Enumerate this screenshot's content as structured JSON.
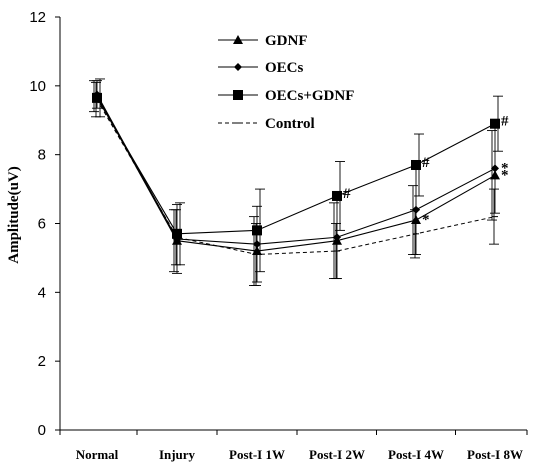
{
  "chart_data": {
    "type": "line",
    "categories": [
      "Normal",
      "Injury",
      "Post-I 1W",
      "Post-I 2W",
      "Post-I 4W",
      "Post-I 8W"
    ],
    "ylabel": "Amplitude(uV)",
    "ylim": [
      0,
      12
    ],
    "yticks": [
      "0",
      "2",
      "4",
      "6",
      "8",
      "10",
      "12"
    ],
    "series": [
      {
        "name": "GDNF",
        "marker": "triangle",
        "dash": "solid",
        "values": [
          9.7,
          5.5,
          5.2,
          5.5,
          6.1,
          7.4
        ],
        "err": [
          0.45,
          0.9,
          1.0,
          1.1,
          1.0,
          1.3
        ]
      },
      {
        "name": "OECs",
        "marker": "diamond",
        "dash": "solid",
        "values": [
          9.75,
          5.55,
          5.4,
          5.6,
          6.4,
          7.6
        ],
        "err": [
          0.4,
          1.0,
          1.1,
          1.2,
          1.3,
          1.3
        ]
      },
      {
        "name": "OECs+GDNF",
        "marker": "square",
        "dash": "solid",
        "values": [
          9.65,
          5.7,
          5.8,
          6.8,
          7.7,
          8.9
        ],
        "err": [
          0.55,
          0.9,
          1.2,
          1.0,
          0.9,
          0.8
        ]
      },
      {
        "name": "Control",
        "marker": "none",
        "dash": "dashed",
        "values": [
          9.6,
          5.6,
          5.1,
          5.2,
          5.7,
          6.2
        ],
        "err": [
          0.5,
          0.8,
          0.9,
          0.8,
          0.7,
          0.8
        ]
      }
    ],
    "annotations": [
      {
        "text": "#",
        "series": "OECs+GDNF",
        "category": "Post-I 2W"
      },
      {
        "text": "#",
        "series": "OECs+GDNF",
        "category": "Post-I 4W"
      },
      {
        "text": "#",
        "series": "OECs+GDNF",
        "category": "Post-I 8W"
      },
      {
        "text": "*",
        "series": "GDNF",
        "category": "Post-I 4W"
      },
      {
        "text": "*",
        "series": "OECs",
        "category": "Post-I 8W"
      },
      {
        "text": "*",
        "series": "GDNF",
        "category": "Post-I 8W"
      }
    ],
    "legend_position": "top-center",
    "grid": false
  }
}
